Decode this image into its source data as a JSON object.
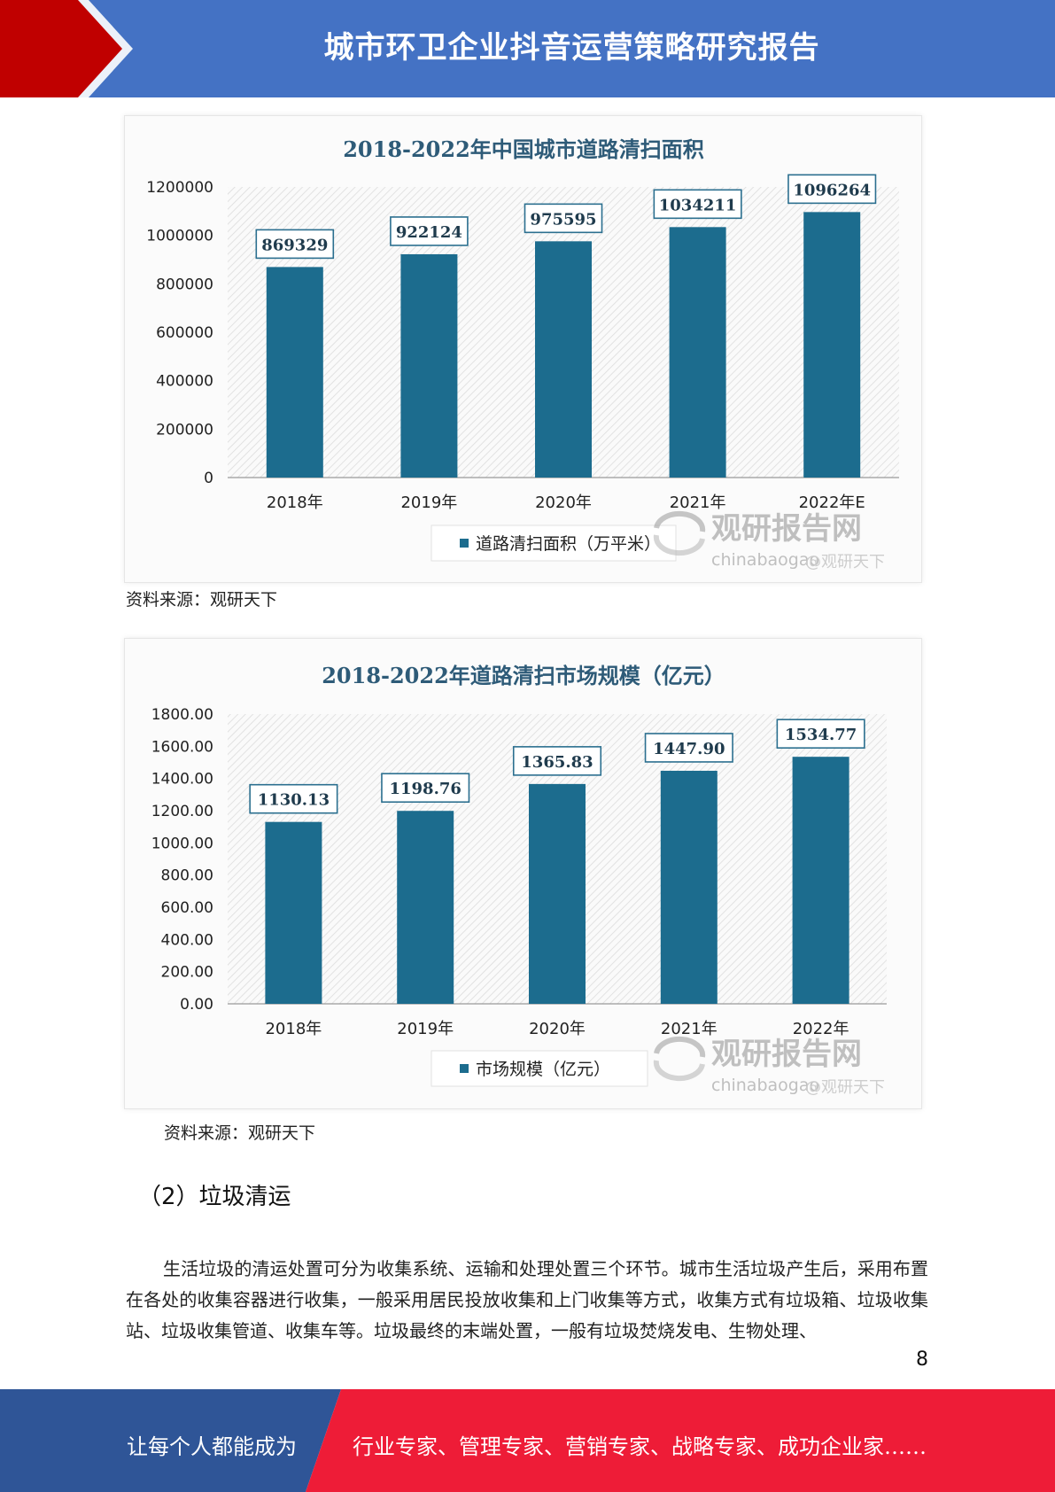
{
  "header": {
    "title": "城市环卫企业抖音运营策略研究报告",
    "colors": {
      "band": "#4472c4",
      "accent": "#c00000"
    }
  },
  "charts": [
    {
      "source": "资料来源：观研天下",
      "watermark": {
        "brand": "观研报告网",
        "domain": "chinabaogao",
        "overlay": "@观研天下",
        "icon": "swirl-logo-icon"
      }
    },
    {
      "source": "资料来源：观研天下",
      "watermark": {
        "brand": "观研报告网",
        "domain": "chinabaogao",
        "overlay": "@观研天下",
        "icon": "swirl-logo-icon"
      }
    }
  ],
  "chart_data": [
    {
      "type": "bar",
      "title": "2018-2022年中国城市道路清扫面积",
      "categories": [
        "2018年",
        "2019年",
        "2020年",
        "2021年",
        "2022年E"
      ],
      "series": [
        {
          "name": "道路清扫面积（万平米）",
          "values": [
            869329,
            922124,
            975595,
            1034211,
            1096264
          ]
        }
      ],
      "value_labels": [
        "869329",
        "922124",
        "975595",
        "1034211",
        "1096264"
      ],
      "yticks": [
        "0",
        "200000",
        "400000",
        "600000",
        "800000",
        "1000000",
        "1200000"
      ],
      "ylim": [
        0,
        1200000
      ],
      "legend": "bottom",
      "grid": "hatched",
      "bar_color": "#1c6c8e"
    },
    {
      "type": "bar",
      "title": "2018-2022年道路清扫市场规模（亿元）",
      "categories": [
        "2018年",
        "2019年",
        "2020年",
        "2021年",
        "2022年"
      ],
      "series": [
        {
          "name": "市场规模（亿元）",
          "values": [
            1130.13,
            1198.76,
            1365.83,
            1447.9,
            1534.77
          ]
        }
      ],
      "value_labels": [
        "1130.13",
        "1198.76",
        "1365.83",
        "1447.90",
        "1534.77"
      ],
      "yticks": [
        "0.00",
        "200.00",
        "400.00",
        "600.00",
        "800.00",
        "1000.00",
        "1200.00",
        "1400.00",
        "1600.00",
        "1800.00"
      ],
      "ylim": [
        0,
        1800
      ],
      "legend": "bottom",
      "grid": "hatched",
      "bar_color": "#1c6c8e"
    }
  ],
  "section": {
    "heading": "（2）垃圾清运",
    "paragraph": "生活垃圾的清运处置可分为收集系统、运输和处理处置三个环节。城市生活垃圾产生后，采用布置在各处的收集容器进行收集，一般采用居民投放收集和上门收集等方式，收集方式有垃圾箱、垃圾收集站、垃圾收集管道、收集车等。垃圾最终的末端处置，一般有垃圾焚烧发电、生物处理、"
  },
  "page_number": "8",
  "footer": {
    "slogan_left": "让每个人都能成为",
    "slogan_right": "行业专家、管理专家、营销专家、战略专家、成功企业家……",
    "colors": {
      "left": "#2f5597",
      "right": "#ee1c37"
    }
  }
}
